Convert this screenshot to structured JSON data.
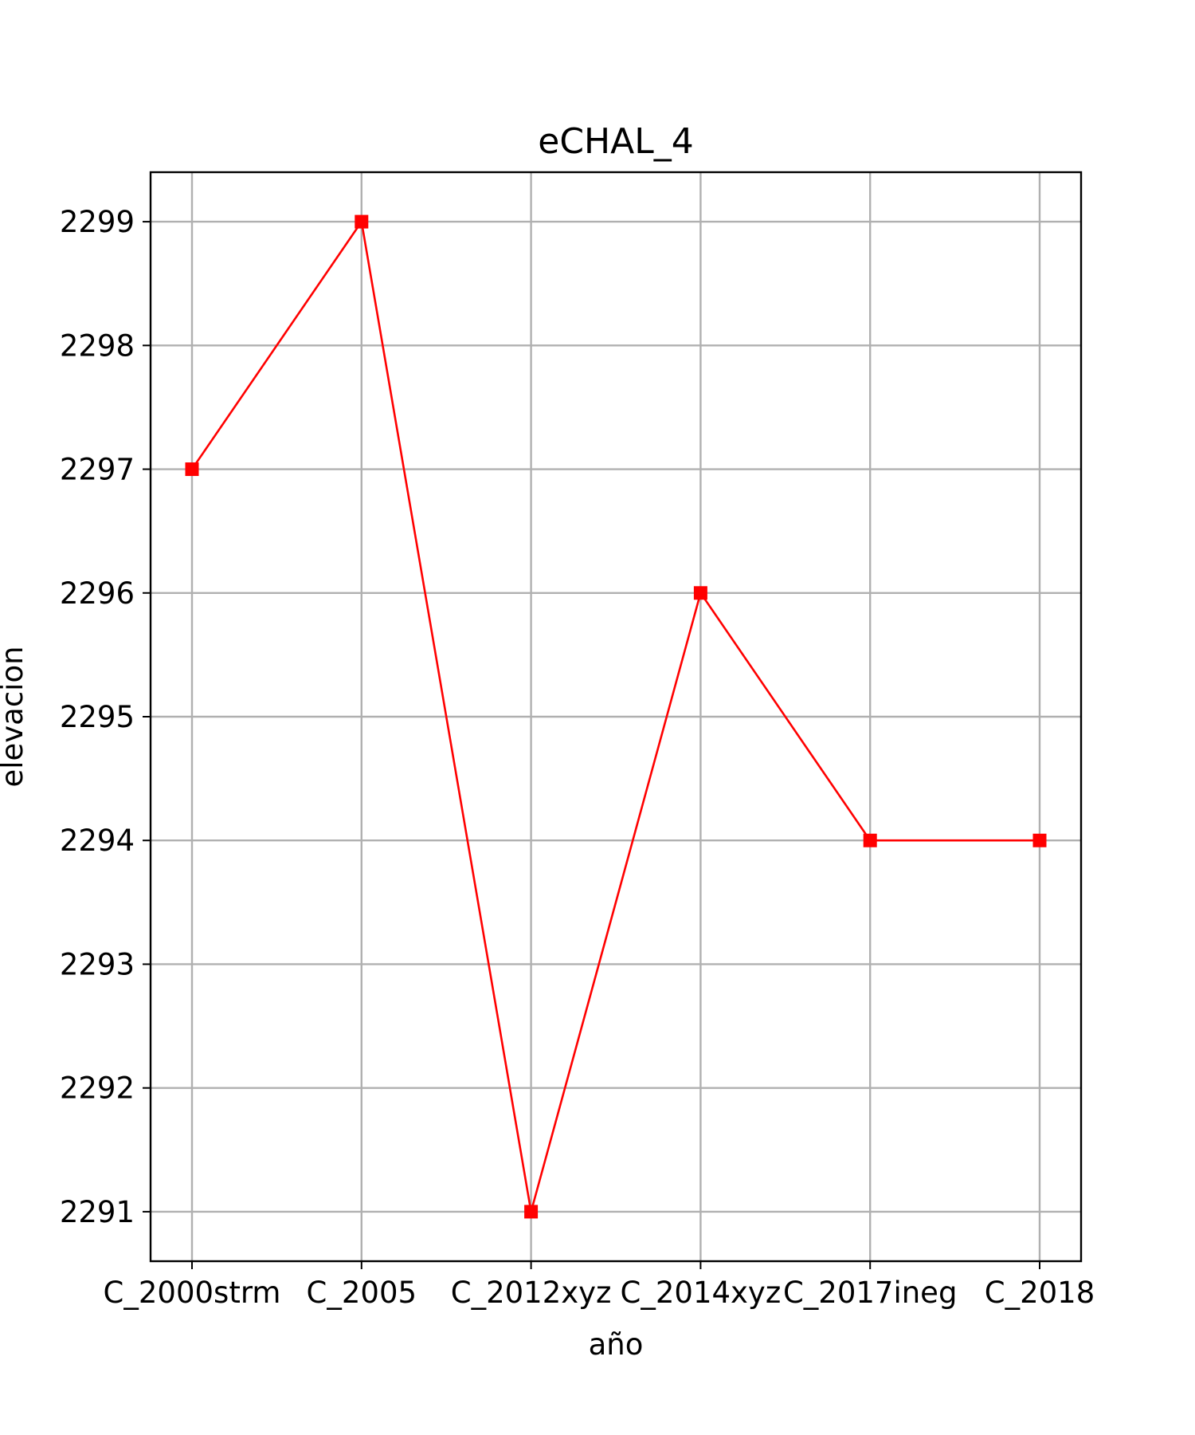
{
  "chart_data": {
    "type": "line",
    "title": "eCHAL_4",
    "xlabel": "año",
    "ylabel": "elevacion",
    "categories": [
      "C_2000strm",
      "C_2005",
      "C_2012xyz",
      "C_2014xyz",
      "C_2017ineg",
      "C_2018"
    ],
    "series": [
      {
        "values": [
          2297,
          2299,
          2291,
          2296,
          2294,
          2294
        ],
        "color": "#ff0000",
        "marker": "square"
      }
    ],
    "yticks": [
      2291,
      2292,
      2293,
      2294,
      2295,
      2296,
      2297,
      2298,
      2299
    ],
    "ylim": [
      2290.6,
      2299.4
    ],
    "grid": true,
    "legend": "none"
  }
}
